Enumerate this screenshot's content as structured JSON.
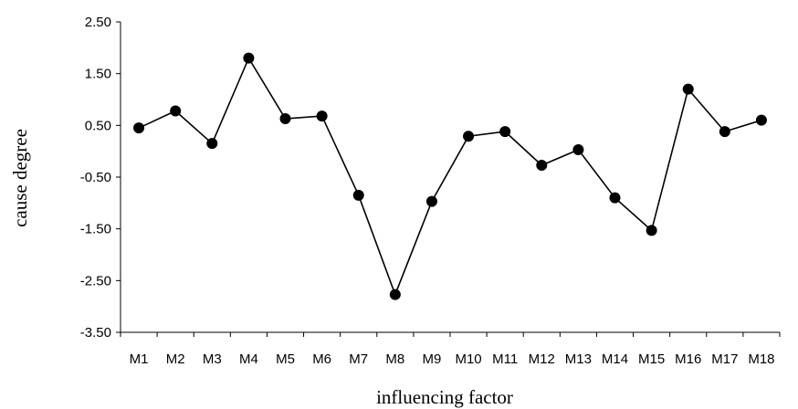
{
  "chart_data": {
    "type": "line",
    "xlabel": "influencing factor",
    "ylabel": "cause degree",
    "categories": [
      "M1",
      "M2",
      "M3",
      "M4",
      "M5",
      "M6",
      "M7",
      "M8",
      "M9",
      "M10",
      "M11",
      "M12",
      "M13",
      "M14",
      "M15",
      "M16",
      "M17",
      "M18"
    ],
    "series": [
      {
        "values": [
          0.45,
          0.78,
          0.15,
          1.8,
          0.63,
          0.68,
          -0.85,
          -2.77,
          -0.97,
          0.29,
          0.38,
          -0.27,
          0.03,
          -0.9,
          -1.53,
          1.2,
          0.38,
          0.6
        ]
      }
    ],
    "ylim": [
      -3.5,
      2.5
    ],
    "yticks": [
      2.5,
      1.5,
      0.5,
      -0.5,
      -1.5,
      -2.5,
      -3.5
    ],
    "ytick_labels": [
      "2.50",
      "1.50",
      "0.50",
      "-0.50",
      "-1.50",
      "-2.50",
      "-3.50"
    ],
    "grid": false,
    "legend": "none",
    "line_color": "#000000",
    "marker_color": "#000000",
    "marker": "filled-circle"
  }
}
